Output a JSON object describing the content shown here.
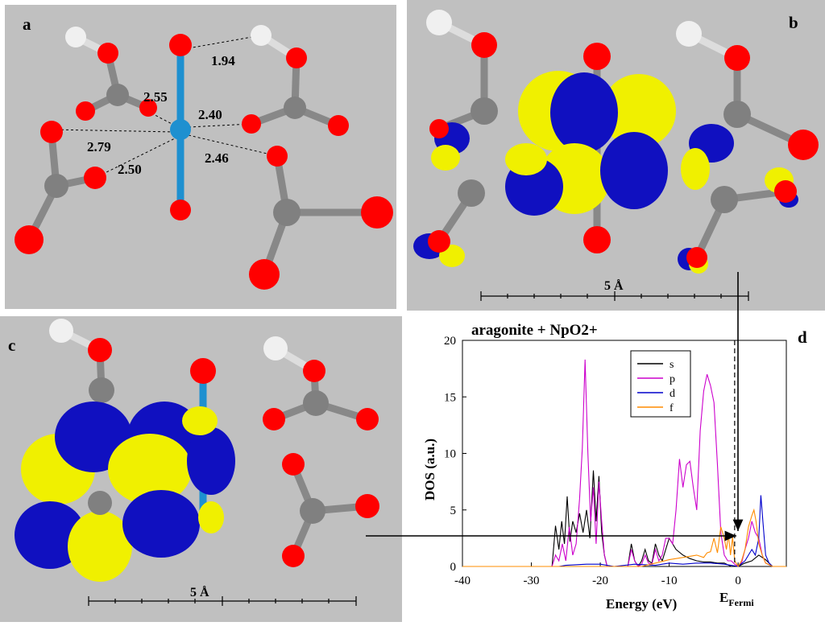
{
  "panels": {
    "a": {
      "label": "a",
      "distances": [
        "1.94",
        "2.55",
        "2.40",
        "2.79",
        "2.46",
        "2.50"
      ]
    },
    "b": {
      "label": "b",
      "scale": "5 Å"
    },
    "c": {
      "label": "c",
      "scale": "5 Å"
    },
    "d": {
      "label": "d"
    }
  },
  "colors": {
    "background": "#c0c0c0",
    "oxygen": "#ff0000",
    "carbon": "#808080",
    "hydrogen": "#f0f0f0",
    "neptunium": "#1e90d0",
    "orbital_positive": "#f0f000",
    "orbital_negative": "#1010c0",
    "s": "#000000",
    "p": "#cc00cc",
    "d": "#0000cc",
    "f": "#ff8c00"
  },
  "chart_data": {
    "type": "line",
    "title": "aragonite + NpO2+",
    "xlabel": "Energy (eV)",
    "ylabel": "DOS (a.u.)",
    "xlim": [
      -40,
      7
    ],
    "ylim": [
      0,
      20
    ],
    "xticks": [
      "-40",
      "-30",
      "-20",
      "-10",
      "0"
    ],
    "yticks": [
      "0",
      "5",
      "10",
      "15",
      "20"
    ],
    "fermi_label": "E",
    "fermi_subscript": "Fermi",
    "fermi_energy": -0.5,
    "legend_position": "top-center",
    "series": [
      {
        "name": "s",
        "x": [
          -40,
          -27,
          -26.5,
          -26,
          -25.6,
          -25.2,
          -24.8,
          -24.4,
          -24,
          -23.5,
          -23,
          -22.5,
          -22,
          -21.5,
          -21,
          -20.6,
          -20.2,
          -19.8,
          -19.4,
          -19,
          -18,
          -16,
          -15.5,
          -15,
          -14.5,
          -14,
          -13.5,
          -13,
          -12.5,
          -12,
          -11.5,
          -11,
          -10.5,
          -10,
          -9.5,
          -9,
          -8,
          -7,
          -6,
          -5,
          -4,
          -3,
          -2,
          -1,
          0,
          1,
          2,
          3,
          4,
          5,
          7
        ],
        "y": [
          0,
          0,
          3.6,
          1.5,
          4,
          2,
          6.2,
          2.2,
          4,
          3,
          4.7,
          3,
          5,
          2.5,
          8.5,
          4,
          8,
          3,
          1,
          0,
          0,
          0,
          2,
          0.5,
          0,
          0.5,
          1.5,
          0.5,
          0.3,
          2,
          1,
          0.5,
          1.5,
          2.5,
          2,
          1.5,
          1,
          0.7,
          0.5,
          0.4,
          0.4,
          0.3,
          0.3,
          0,
          0,
          0.3,
          0.5,
          1,
          0.6,
          0,
          0
        ]
      },
      {
        "name": "p",
        "x": [
          -40,
          -27,
          -26.5,
          -26,
          -25.5,
          -25,
          -24.5,
          -24,
          -23.5,
          -23,
          -22.6,
          -22.2,
          -21.8,
          -21.4,
          -21,
          -20.6,
          -20.2,
          -19.8,
          -19.4,
          -19,
          -18,
          -16,
          -15.5,
          -15,
          -14.5,
          -14,
          -13.5,
          -13,
          -12.5,
          -12,
          -11.5,
          -11,
          -10.5,
          -10,
          -9.5,
          -9,
          -8.5,
          -8,
          -7.5,
          -7,
          -6.5,
          -6,
          -5.5,
          -5,
          -4.5,
          -4,
          -3.5,
          -3,
          -2.5,
          -2,
          -1.5,
          -1,
          -0.5,
          0,
          0.5,
          1,
          1.5,
          2,
          2.5,
          3,
          3.5,
          4,
          5,
          7
        ],
        "y": [
          0,
          0,
          1,
          0.5,
          2,
          0.5,
          3.5,
          1,
          2,
          6,
          10.5,
          18.3,
          10,
          4,
          7,
          2,
          7.5,
          4,
          1,
          0,
          0,
          0,
          1.5,
          0.5,
          0,
          0.2,
          1,
          0.3,
          0.2,
          1.5,
          0.5,
          1,
          2.5,
          2.5,
          2,
          5,
          9.5,
          7,
          9,
          9.3,
          7,
          5,
          12,
          15.5,
          17,
          16,
          14.5,
          9,
          3,
          1,
          0.5,
          0.5,
          0.2,
          0,
          0.3,
          1.5,
          2.5,
          4,
          3,
          2.5,
          1,
          0.3,
          0,
          0
        ]
      },
      {
        "name": "d",
        "x": [
          -40,
          -26,
          -25,
          -22,
          -20,
          -18,
          -15,
          -12,
          -10,
          -8,
          -6,
          -4,
          -2,
          -1,
          0,
          1,
          2,
          2.5,
          3,
          3.3,
          3.6,
          4,
          4.5,
          5,
          7
        ],
        "y": [
          0,
          0,
          0.1,
          0.2,
          0.2,
          0,
          0.2,
          0.1,
          0.3,
          0.2,
          0.3,
          0.3,
          0.2,
          0.1,
          0,
          0.5,
          1.5,
          1,
          2.5,
          6.3,
          4,
          1,
          0.3,
          0,
          0
        ]
      },
      {
        "name": "f",
        "x": [
          -40,
          -14,
          -12,
          -10,
          -8,
          -6,
          -5,
          -4.5,
          -4,
          -3.5,
          -3,
          -2.5,
          -2,
          -1.7,
          -1.4,
          -1.1,
          -0.8,
          -0.5,
          0,
          0.5,
          1,
          1.5,
          2,
          2.3,
          2.6,
          3,
          3.5,
          4,
          5,
          7
        ],
        "y": [
          0,
          0,
          0.3,
          0.6,
          0.8,
          1,
          0.8,
          1.2,
          1.3,
          2.5,
          1.2,
          3.5,
          2.5,
          1.5,
          2.8,
          1,
          2.6,
          0.5,
          0,
          0.5,
          1.5,
          3.5,
          4.5,
          5,
          4,
          2,
          1,
          0.3,
          0,
          0
        ]
      }
    ]
  }
}
